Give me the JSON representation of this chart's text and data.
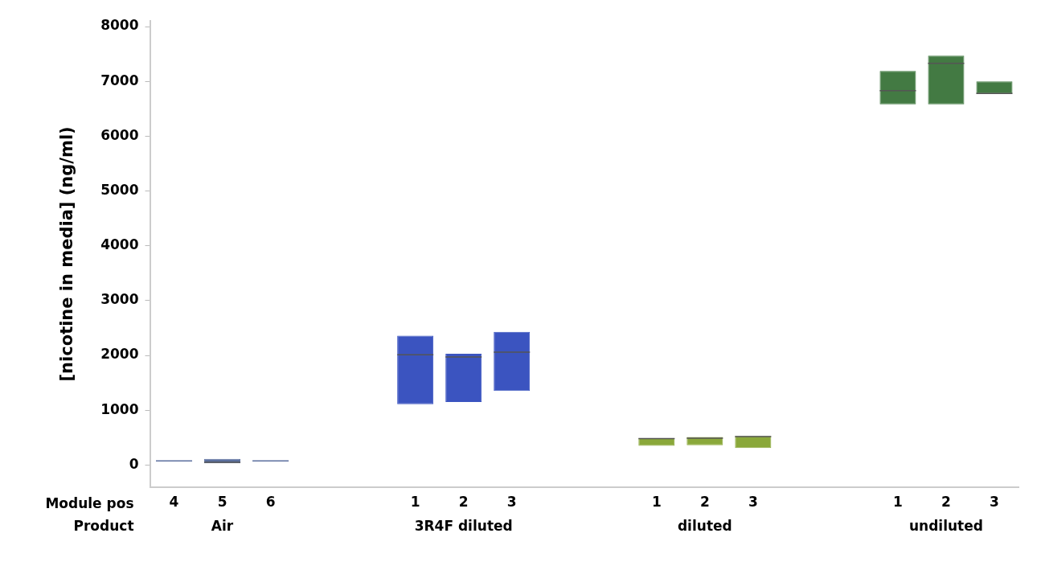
{
  "chart_data": {
    "type": "box",
    "ylabel": "[nicotine in media] (ng/ml)",
    "categories": [
      "4",
      "5",
      "6",
      null,
      null,
      "1",
      "2",
      "3",
      null,
      null,
      "1",
      "2",
      "3",
      null,
      null,
      "1",
      "2",
      "3"
    ],
    "boxes": [
      {
        "low": 75,
        "q1": 75,
        "median": 75,
        "q3": 75,
        "high": 75
      },
      {
        "low": 30,
        "q1": 30,
        "median": 50,
        "q3": 110,
        "high": 110
      },
      {
        "low": 75,
        "q1": 75,
        "median": 75,
        "q3": 75,
        "high": 75
      },
      null,
      null,
      {
        "low": 1110,
        "q1": 1110,
        "median": 2010,
        "q3": 2360,
        "high": 2360
      },
      {
        "low": 1150,
        "q1": 1150,
        "median": 1970,
        "q3": 2030,
        "high": 2030
      },
      {
        "low": 1350,
        "q1": 1350,
        "median": 2060,
        "q3": 2430,
        "high": 2430
      },
      null,
      null,
      {
        "low": 350,
        "q1": 350,
        "median": 480,
        "q3": 490,
        "high": 490
      },
      {
        "low": 360,
        "q1": 360,
        "median": 490,
        "q3": 510,
        "high": 510
      },
      {
        "low": 310,
        "q1": 310,
        "median": 520,
        "q3": 530,
        "high": 530
      },
      null,
      null,
      {
        "low": 6580,
        "q1": 6580,
        "median": 6830,
        "q3": 7190,
        "high": 7190
      },
      {
        "low": 6580,
        "q1": 6580,
        "median": 7330,
        "q3": 7470,
        "high": 7470
      },
      {
        "low": 6780,
        "q1": 6780,
        "median": 6780,
        "q3": 7000,
        "high": 7000
      }
    ],
    "colors": [
      "#5b6f9e",
      "#5b6f9e",
      "#5b6f9e",
      null,
      null,
      "#3b54c0",
      "#3b54c0",
      "#3b54c0",
      null,
      null,
      "#8aa83a",
      "#8aa83a",
      "#8aa83a",
      null,
      null,
      "#437a43",
      "#437a43",
      "#437a43"
    ],
    "ylim": [
      -400,
      8100
    ],
    "yticks": [
      0,
      1000,
      2000,
      3000,
      4000,
      5000,
      6000,
      7000,
      8000
    ],
    "grid": false,
    "legend": false,
    "annotations": [
      "Module pos",
      "Product",
      "Air",
      "3R4F diluted",
      "diluted",
      "undiluted"
    ]
  }
}
